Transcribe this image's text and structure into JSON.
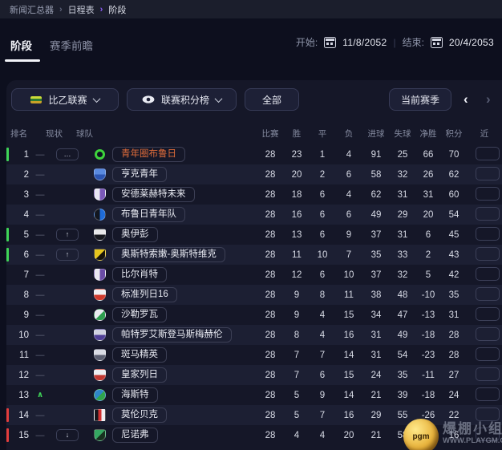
{
  "breadcrumb": {
    "items": [
      "新闻汇总器",
      "日程表",
      "阶段"
    ],
    "chevron": "›"
  },
  "tabs": {
    "active": "阶段",
    "inactive": "赛季前瞻"
  },
  "dates": {
    "start_label": "开始:",
    "start_value": "11/8/2052",
    "end_label": "结束:",
    "end_value": "20/4/2053"
  },
  "filters": {
    "competition": "比乙联赛",
    "view": "联赛积分榜",
    "scope": "全部",
    "season": "当前赛季",
    "prev_arrow": "‹",
    "next_arrow": "›"
  },
  "status_glyphs": {
    "dash": "—",
    "up": "∧"
  },
  "colors": {
    "promotion_bar": "#3fd458",
    "relegation_bar": "#e23d3d",
    "leader_name": "#dd6b3a",
    "breadcrumb_accent": "#8b5cf6"
  },
  "watermark": {
    "ball_text": "pgm",
    "line1": "爆棚小组",
    "line2": "WWW.PLAYGM.CC"
  },
  "table": {
    "headers": [
      "排名",
      "现状",
      "球队",
      "比赛",
      "胜",
      "平",
      "负",
      "进球",
      "失球",
      "净胜",
      "积分"
    ],
    "form_header_partial": "近",
    "rows": [
      {
        "pos": "1",
        "bar": "green",
        "status": "dash",
        "badge": "…",
        "team": "青年圈布鲁日",
        "leader": true,
        "logo": {
          "shape": "ring",
          "dir": "v",
          "c1": "#3ed43c",
          "c2": "#0d1322"
        },
        "played": "28",
        "won": "23",
        "drawn": "1",
        "lost": "4",
        "gf": "91",
        "ga": "25",
        "gd": "66",
        "pts": "70"
      },
      {
        "pos": "2",
        "bar": "none",
        "status": "dash",
        "badge": null,
        "team": "亨克青年",
        "leader": false,
        "logo": {
          "shape": "shield",
          "dir": "v",
          "c1": "#5a8ae0",
          "c2": "#2c55b2"
        },
        "played": "28",
        "won": "20",
        "drawn": "2",
        "lost": "6",
        "gf": "58",
        "ga": "32",
        "gd": "26",
        "pts": "62"
      },
      {
        "pos": "3",
        "bar": "none",
        "status": "dash",
        "badge": null,
        "team": "安德莱赫特未来",
        "leader": false,
        "logo": {
          "shape": "shield",
          "dir": "h",
          "c1": "#e8e6f2",
          "c2": "#7a58b8"
        },
        "played": "28",
        "won": "18",
        "drawn": "6",
        "lost": "4",
        "gf": "62",
        "ga": "31",
        "gd": "31",
        "pts": "60"
      },
      {
        "pos": "4",
        "bar": "none",
        "status": "dash",
        "badge": null,
        "team": "布鲁日青年队",
        "leader": false,
        "logo": {
          "shape": "circle",
          "dir": "h",
          "c1": "#12161f",
          "c2": "#1f6bd8"
        },
        "played": "28",
        "won": "16",
        "drawn": "6",
        "lost": "6",
        "gf": "49",
        "ga": "29",
        "gd": "20",
        "pts": "54"
      },
      {
        "pos": "5",
        "bar": "green",
        "status": "dash",
        "badge": "↑",
        "team": "奥伊彭",
        "leader": false,
        "logo": {
          "shape": "shield",
          "dir": "v",
          "c1": "#e8e8ea",
          "c2": "#17181f"
        },
        "played": "28",
        "won": "13",
        "drawn": "6",
        "lost": "9",
        "gf": "37",
        "ga": "31",
        "gd": "6",
        "pts": "45"
      },
      {
        "pos": "6",
        "bar": "green",
        "status": "dash",
        "badge": "↑",
        "team": "奥斯特索嫩-奥斯特维克",
        "leader": false,
        "logo": {
          "shape": "shield",
          "dir": "d",
          "c1": "#e6c51d",
          "c2": "#17130a"
        },
        "played": "28",
        "won": "11",
        "drawn": "10",
        "lost": "7",
        "gf": "35",
        "ga": "33",
        "gd": "2",
        "pts": "43"
      },
      {
        "pos": "7",
        "bar": "none",
        "status": "dash",
        "badge": null,
        "team": "比尔肖特",
        "leader": false,
        "logo": {
          "shape": "shield",
          "dir": "h",
          "c1": "#e9e7f0",
          "c2": "#6a4ca6"
        },
        "played": "28",
        "won": "12",
        "drawn": "6",
        "lost": "10",
        "gf": "37",
        "ga": "32",
        "gd": "5",
        "pts": "42"
      },
      {
        "pos": "8",
        "bar": "none",
        "status": "dash",
        "badge": null,
        "team": "标准列日16",
        "leader": false,
        "logo": {
          "shape": "shield",
          "dir": "v",
          "c1": "#efeef0",
          "c2": "#d03a2c"
        },
        "played": "28",
        "won": "9",
        "drawn": "8",
        "lost": "11",
        "gf": "38",
        "ga": "48",
        "gd": "-10",
        "pts": "35"
      },
      {
        "pos": "9",
        "bar": "none",
        "status": "dash",
        "badge": null,
        "team": "沙勒罗瓦",
        "leader": false,
        "logo": {
          "shape": "circle",
          "dir": "d",
          "c1": "#e9eaf0",
          "c2": "#2e9e4f"
        },
        "played": "28",
        "won": "9",
        "drawn": "4",
        "lost": "15",
        "gf": "34",
        "ga": "47",
        "gd": "-13",
        "pts": "31"
      },
      {
        "pos": "10",
        "bar": "none",
        "status": "dash",
        "badge": null,
        "team": "帕特罗艾斯登马斯梅赫伦",
        "leader": false,
        "logo": {
          "shape": "shield",
          "dir": "v",
          "c1": "#cfd2e0",
          "c2": "#4f3f96"
        },
        "played": "28",
        "won": "8",
        "drawn": "4",
        "lost": "16",
        "gf": "31",
        "ga": "49",
        "gd": "-18",
        "pts": "28"
      },
      {
        "pos": "11",
        "bar": "none",
        "status": "dash",
        "badge": null,
        "team": "斑马精英",
        "leader": false,
        "logo": {
          "shape": "shield",
          "dir": "v",
          "c1": "#d9dbe4",
          "c2": "#5a5e70"
        },
        "played": "28",
        "won": "7",
        "drawn": "7",
        "lost": "14",
        "gf": "31",
        "ga": "54",
        "gd": "-23",
        "pts": "28"
      },
      {
        "pos": "12",
        "bar": "none",
        "status": "dash",
        "badge": null,
        "team": "皇家列日",
        "leader": false,
        "logo": {
          "shape": "shield",
          "dir": "v",
          "c1": "#eceef2",
          "c2": "#c23832"
        },
        "played": "28",
        "won": "7",
        "drawn": "6",
        "lost": "15",
        "gf": "24",
        "ga": "35",
        "gd": "-11",
        "pts": "27"
      },
      {
        "pos": "13",
        "bar": "none",
        "status": "up",
        "badge": null,
        "team": "海斯特",
        "leader": false,
        "logo": {
          "shape": "circle",
          "dir": "d",
          "c1": "#2e86c8",
          "c2": "#2fa44d"
        },
        "played": "28",
        "won": "5",
        "drawn": "9",
        "lost": "14",
        "gf": "21",
        "ga": "39",
        "gd": "-18",
        "pts": "24"
      },
      {
        "pos": "14",
        "bar": "red",
        "status": "dash",
        "badge": null,
        "team": "莫伦贝克",
        "leader": false,
        "logo": {
          "shape": "square",
          "dir": "h",
          "c1": "#15161c",
          "c2": "#d03030",
          "c3": "#eeeef2"
        },
        "played": "28",
        "won": "5",
        "drawn": "7",
        "lost": "16",
        "gf": "29",
        "ga": "55",
        "gd": "-26",
        "pts": "22"
      },
      {
        "pos": "15",
        "bar": "red",
        "status": "dash",
        "badge": "↓",
        "team": "尼诺弗",
        "leader": false,
        "logo": {
          "shape": "shield",
          "dir": "d",
          "c1": "#35a862",
          "c2": "#17321f"
        },
        "played": "28",
        "won": "4",
        "drawn": "4",
        "lost": "20",
        "gf": "21",
        "ga": "58",
        "gd": "-37",
        "pts": "16"
      }
    ]
  }
}
